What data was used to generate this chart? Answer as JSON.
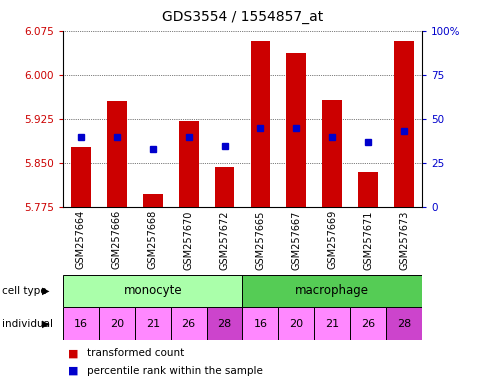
{
  "title": "GDS3554 / 1554857_at",
  "samples": [
    "GSM257664",
    "GSM257666",
    "GSM257668",
    "GSM257670",
    "GSM257672",
    "GSM257665",
    "GSM257667",
    "GSM257669",
    "GSM257671",
    "GSM257673"
  ],
  "bar_bottoms": [
    5.775,
    5.775,
    5.775,
    5.775,
    5.775,
    5.775,
    5.775,
    5.775,
    5.775,
    5.775
  ],
  "bar_tops": [
    5.877,
    5.956,
    5.797,
    5.921,
    5.843,
    6.057,
    6.038,
    5.958,
    5.835,
    6.057
  ],
  "percentile": [
    40,
    40,
    33,
    40,
    35,
    45,
    45,
    40,
    37,
    43
  ],
  "ylim_left": [
    5.775,
    6.075
  ],
  "ylim_right": [
    0,
    100
  ],
  "yticks_left": [
    5.775,
    5.85,
    5.925,
    6.0,
    6.075
  ],
  "yticks_right": [
    0,
    25,
    50,
    75,
    100
  ],
  "bar_color": "#cc0000",
  "dot_color": "#0000cc",
  "cell_type_colors": {
    "monocyte": "#aaffaa",
    "macrophage": "#55cc55"
  },
  "individuals": [
    16,
    20,
    21,
    26,
    28,
    16,
    20,
    21,
    26,
    28
  ],
  "individual_color": "#ff88ff",
  "individual_highlight": [
    4,
    9
  ],
  "individual_highlight_color": "#cc44cc",
  "left_ytick_color": "#cc0000",
  "right_ytick_color": "#0000cc",
  "legend_red": "transformed count",
  "legend_blue": "percentile rank within the sample"
}
